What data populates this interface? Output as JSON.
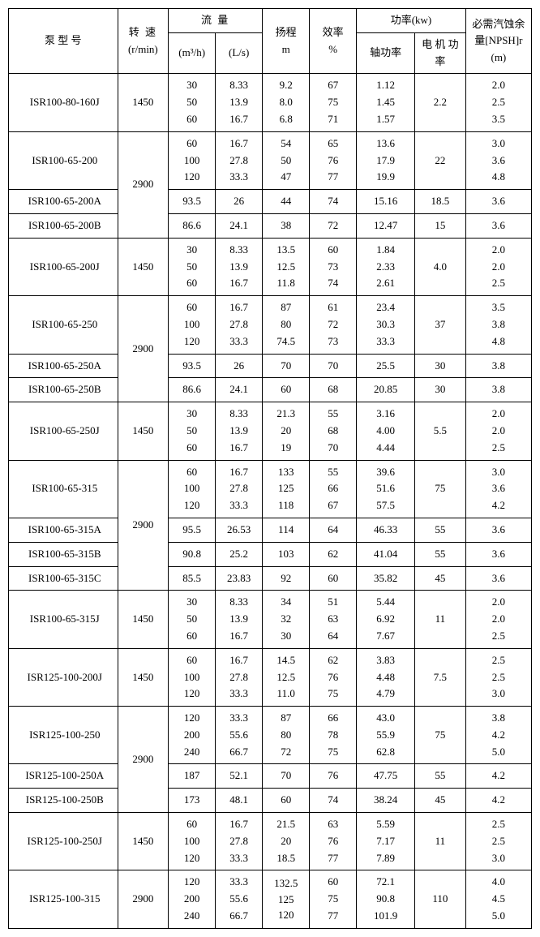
{
  "headers": {
    "model": "泵 型 号",
    "speed_top": "转 速",
    "speed_unit": "(r/min)",
    "flow_group": "流    量",
    "flow_m3h": "(m³/h)",
    "flow_ls": "(L/s)",
    "head_top": "扬程",
    "head_unit": "m",
    "eff_top": "效率",
    "eff_unit": "%",
    "power_group": "功率(kw)",
    "power_shaft": "轴功率",
    "power_motor": "电 机 功 率",
    "npsh_top": "必需汽蚀余",
    "npsh_unit": "量[NPSH]r (m)"
  },
  "rows": [
    {
      "model": "ISR100-80-160J",
      "speed": "1450",
      "m3h": "30\n50\n60",
      "ls": "8.33\n13.9\n16.7",
      "head": "9.2\n8.0\n6.8",
      "eff": "67\n75\n71",
      "pshaft": "1.12\n1.45\n1.57",
      "pmotor": "2.2",
      "npsh": "2.0\n2.5\n3.5",
      "speedSpan": 1,
      "modelSpan": 1
    },
    {
      "model": "ISR100-65-200",
      "speed": "",
      "m3h": "60\n100\n120",
      "ls": "16.7\n27.8\n33.3",
      "head": "54\n50\n47",
      "eff": "65\n76\n77",
      "pshaft": "13.6\n17.9\n19.9",
      "pmotor": "22",
      "npsh": "3.0\n3.6\n4.8",
      "speedVal": "2900",
      "speedSpan": 3,
      "modelSpan": 1
    },
    {
      "model": "ISR100-65-200A",
      "m3h": "93.5",
      "ls": "26",
      "head": "44",
      "eff": "74",
      "pshaft": "15.16",
      "pmotor": "18.5",
      "npsh": "3.6",
      "modelSpan": 1
    },
    {
      "model": "ISR100-65-200B",
      "m3h": "86.6",
      "ls": "24.1",
      "head": "38",
      "eff": "72",
      "pshaft": "12.47",
      "pmotor": "15",
      "npsh": "3.6",
      "modelSpan": 1
    },
    {
      "model": "ISR100-65-200J",
      "speed": "1450",
      "m3h": "30\n50\n60",
      "ls": "8.33\n13.9\n16.7",
      "head": "13.5\n12.5\n11.8",
      "eff": "60\n73\n74",
      "pshaft": "1.84\n2.33\n2.61",
      "pmotor": "4.0",
      "npsh": "2.0\n2.0\n2.5",
      "speedSpan": 1,
      "modelSpan": 1
    },
    {
      "model": "ISR100-65-250",
      "speed": "",
      "m3h": "60\n100\n120",
      "ls": "16.7\n27.8\n33.3",
      "head": "87\n80\n74.5",
      "eff": "61\n72\n73",
      "pshaft": "23.4\n30.3\n33.3",
      "pmotor": "37",
      "npsh": "3.5\n3.8\n4.8",
      "speedVal": "2900",
      "speedSpan": 3,
      "modelSpan": 1
    },
    {
      "model": "ISR100-65-250A",
      "m3h": "93.5",
      "ls": "26",
      "head": "70",
      "eff": "70",
      "pshaft": "25.5",
      "pmotor": "30",
      "npsh": "3.8",
      "modelSpan": 1
    },
    {
      "model": "ISR100-65-250B",
      "m3h": "86.6",
      "ls": "24.1",
      "head": "60",
      "eff": "68",
      "pshaft": "20.85",
      "pmotor": "30",
      "npsh": "3.8",
      "modelSpan": 1
    },
    {
      "model": "ISR100-65-250J",
      "speed": "1450",
      "m3h": "30\n50\n60",
      "ls": "8.33\n13.9\n16.7",
      "head": "21.3\n20\n19",
      "eff": "55\n68\n70",
      "pshaft": "3.16\n4.00\n4.44",
      "pmotor": "5.5",
      "npsh": "2.0\n2.0\n2.5",
      "speedSpan": 1,
      "modelSpan": 1
    },
    {
      "model": "ISR100-65-315",
      "speed": "",
      "m3h": "60\n100\n120",
      "ls": "16.7\n27.8\n33.3",
      "head": "133\n125\n118",
      "eff": "55\n66\n67",
      "pshaft": "39.6\n51.6\n57.5",
      "pmotor": "75",
      "npsh": "3.0\n3.6\n4.2",
      "speedVal": "2900",
      "speedSpan": 4,
      "modelSpan": 1
    },
    {
      "model": "ISR100-65-315A",
      "m3h": "95.5",
      "ls": "26.53",
      "head": "114",
      "eff": "64",
      "pshaft": "46.33",
      "pmotor": "55",
      "npsh": "3.6",
      "modelSpan": 1
    },
    {
      "model": "ISR100-65-315B",
      "m3h": "90.8",
      "ls": "25.2",
      "head": "103",
      "eff": "62",
      "pshaft": "41.04",
      "pmotor": "55",
      "npsh": "3.6",
      "modelSpan": 1
    },
    {
      "model": "ISR100-65-315C",
      "m3h": "85.5",
      "ls": "23.83",
      "head": "92",
      "eff": "60",
      "pshaft": "35.82",
      "pmotor": "45",
      "npsh": "3.6",
      "modelSpan": 1
    },
    {
      "model": "ISR100-65-315J",
      "speed": "1450",
      "m3h": "30\n50\n60",
      "ls": "8.33\n13.9\n16.7",
      "head": "34\n32\n30",
      "eff": "51\n63\n64",
      "pshaft": "5.44\n6.92\n7.67",
      "pmotor": "11",
      "npsh": "2.0\n2.0\n2.5",
      "speedSpan": 1,
      "modelSpan": 1
    },
    {
      "model": "ISR125-100-200J",
      "speed": "1450",
      "m3h": "60\n100\n120",
      "ls": "16.7\n27.8\n33.3",
      "head": "14.5\n12.5\n11.0",
      "eff": "62\n76\n75",
      "pshaft": "3.83\n4.48\n4.79",
      "pmotor": "7.5",
      "npsh": "2.5\n2.5\n3.0",
      "speedSpan": 1,
      "modelSpan": 1
    },
    {
      "model": "ISR125-100-250",
      "speed": "",
      "m3h": "120\n200\n240",
      "ls": "33.3\n55.6\n66.7",
      "head": "87\n80\n72",
      "eff": "66\n78\n75",
      "pshaft": "43.0\n55.9\n62.8",
      "pmotor": "75",
      "npsh": "3.8\n4.2\n5.0",
      "speedVal": "2900",
      "speedSpan": 3,
      "modelSpan": 1
    },
    {
      "model": "ISR125-100-250A",
      "m3h": "187",
      "ls": "52.1",
      "head": "70",
      "eff": "76",
      "pshaft": "47.75",
      "pmotor": "55",
      "npsh": "4.2",
      "modelSpan": 1
    },
    {
      "model": "ISR125-100-250B",
      "m3h": "173",
      "ls": "48.1",
      "head": "60",
      "eff": "74",
      "pshaft": "38.24",
      "pmotor": "45",
      "npsh": "4.2",
      "modelSpan": 1
    },
    {
      "model": "ISR125-100-250J",
      "speed": "1450",
      "m3h": "60\n100\n120",
      "ls": "16.7\n27.8\n33.3",
      "head": "21.5\n20\n18.5",
      "eff": "63\n76\n77",
      "pshaft": "5.59\n7.17\n7.89",
      "pmotor": "11",
      "npsh": "2.5\n2.5\n3.0",
      "speedSpan": 1,
      "modelSpan": 1
    },
    {
      "model": "ISR125-100-315",
      "speed": "2900",
      "m3h": "120\n200\n240",
      "ls": "33.3\n55.6\n66.7",
      "head": "132.5\n125\n120",
      "eff": "60\n75\n77",
      "pshaft": "72.1\n90.8\n101.9",
      "pmotor": "110",
      "npsh": "4.0\n4.5\n5.0",
      "speedSpan": 1,
      "modelSpan": 1,
      "headTight": true
    }
  ]
}
